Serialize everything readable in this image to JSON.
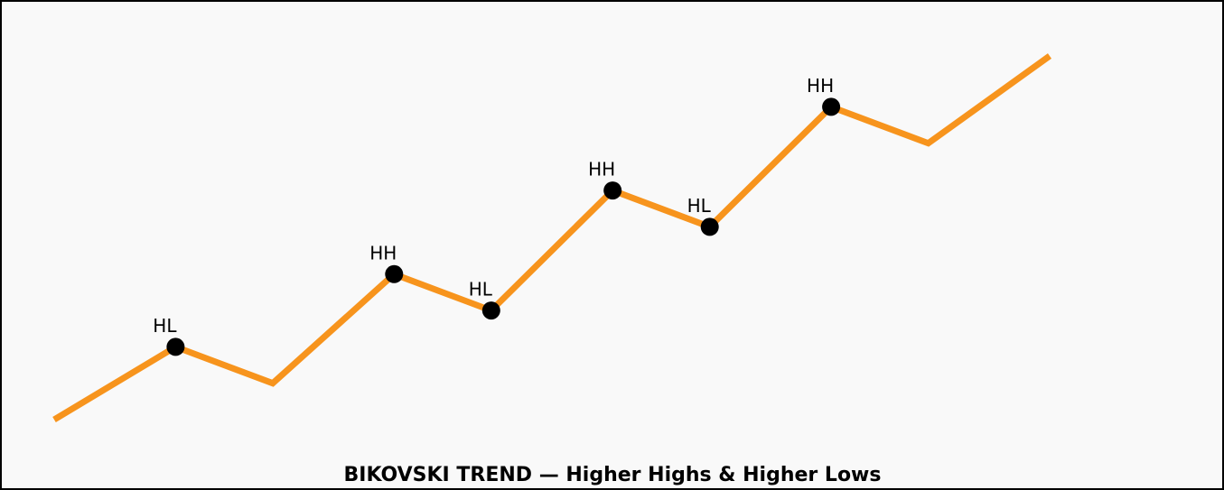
{
  "chart_data": {
    "type": "line",
    "title": "BIKOVSKI TREND — Higher Highs & Higher Lows",
    "x": [
      0,
      1.25,
      2.25,
      3.5,
      4.5,
      5.75,
      6.75,
      8,
      9,
      10.25
    ],
    "series": [
      {
        "color": "#f7941d",
        "values": [
          0,
          2,
          1,
          4,
          3,
          6.3,
          5.3,
          8.6,
          7.6,
          10
        ]
      }
    ],
    "point_labels": [
      null,
      "HL",
      null,
      "HH",
      "HL",
      "HH",
      "HL",
      "HH",
      null,
      null
    ],
    "marker_color": "#000000",
    "xlim": [
      0,
      10.25
    ],
    "ylim": [
      0,
      10
    ]
  }
}
